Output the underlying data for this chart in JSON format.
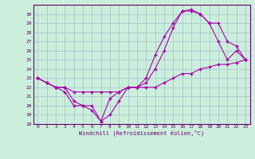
{
  "xlabel": "Windchill (Refroidissement éolien,°C)",
  "bg_color": "#cceedd",
  "grid_color": "#aacccc",
  "line_color": "#aa00aa",
  "xlim": [
    -0.5,
    23.5
  ],
  "ylim": [
    18,
    31
  ],
  "yticks": [
    18,
    19,
    20,
    21,
    22,
    23,
    24,
    25,
    26,
    27,
    28,
    29,
    30
  ],
  "xticks": [
    0,
    1,
    2,
    3,
    4,
    5,
    6,
    7,
    8,
    9,
    10,
    11,
    12,
    13,
    14,
    15,
    16,
    17,
    18,
    19,
    20,
    21,
    22,
    23
  ],
  "line1_x": [
    0,
    1,
    2,
    3,
    4,
    5,
    6,
    7,
    8,
    9,
    10,
    11,
    12,
    13,
    14,
    15,
    16,
    17,
    18,
    19,
    20,
    21,
    22,
    23
  ],
  "line1_y": [
    23,
    22.5,
    22,
    22,
    21.5,
    21.5,
    21.5,
    21.5,
    21.5,
    21.5,
    22,
    22,
    22,
    22,
    22.5,
    23,
    23.5,
    23.5,
    24,
    24.2,
    24.5,
    24.5,
    24.7,
    25
  ],
  "line2_x": [
    0,
    1,
    2,
    3,
    4,
    5,
    6,
    7,
    8,
    9,
    10,
    11,
    12,
    13,
    14,
    15,
    16,
    17,
    18,
    19,
    20,
    21,
    22,
    23
  ],
  "line2_y": [
    23,
    22.5,
    22,
    22,
    20.5,
    20,
    20,
    18.3,
    19,
    20.5,
    22,
    22,
    22.5,
    24,
    26,
    28.5,
    30.3,
    30.5,
    30,
    29,
    29,
    27,
    26.5,
    25
  ],
  "line3_x": [
    0,
    1,
    2,
    3,
    4,
    5,
    6,
    7,
    8,
    9,
    10,
    11,
    12,
    13,
    14,
    15,
    16,
    17,
    18,
    19,
    20,
    21,
    22,
    23
  ],
  "line3_y": [
    23,
    22.5,
    22,
    21.5,
    20,
    20,
    19.5,
    18.3,
    20.8,
    21.5,
    22,
    22,
    23,
    25.5,
    27.5,
    29,
    30.3,
    30.3,
    30,
    29,
    27,
    25,
    26,
    25
  ]
}
